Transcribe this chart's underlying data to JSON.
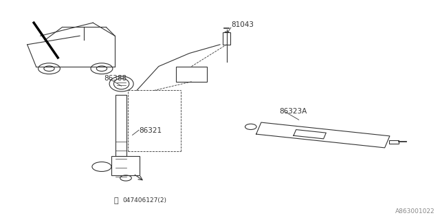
{
  "bg_color": "#ffffff",
  "line_color": "#333333",
  "diagram_id": "A863001022",
  "fig_width": 6.4,
  "fig_height": 3.2,
  "dpi": 100
}
